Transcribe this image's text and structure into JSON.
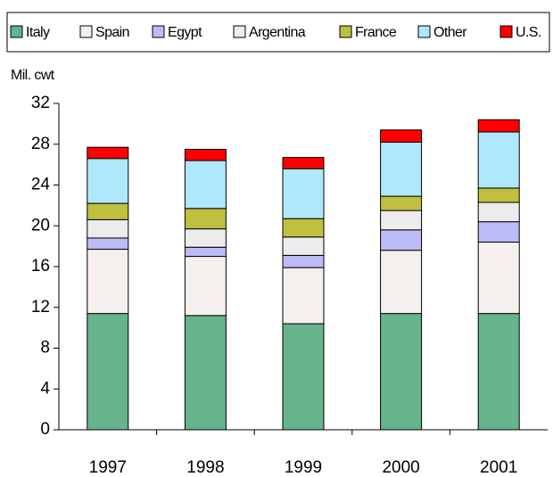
{
  "chart_data": {
    "type": "stacked_bar",
    "y_axis_label": "Mil. cwt",
    "categories": [
      "1997",
      "1998",
      "1999",
      "2000",
      "2001"
    ],
    "series": [
      {
        "name": "Italy",
        "color": "#66b38c",
        "values": [
          11.4,
          11.2,
          10.4,
          11.4,
          11.4
        ]
      },
      {
        "name": "Spain",
        "color": "#f5f0ee",
        "values": [
          6.3,
          5.8,
          5.5,
          6.2,
          7.0
        ]
      },
      {
        "name": "Egypt",
        "color": "#bbbbf5",
        "values": [
          1.1,
          0.9,
          1.2,
          2.0,
          2.0
        ]
      },
      {
        "name": "Argentina",
        "color": "#ececec",
        "values": [
          1.8,
          1.8,
          1.8,
          1.9,
          1.9
        ]
      },
      {
        "name": "France",
        "color": "#bfbf40",
        "values": [
          1.6,
          2.0,
          1.8,
          1.4,
          1.4
        ]
      },
      {
        "name": "Other",
        "color": "#aee8fa",
        "values": [
          4.4,
          4.7,
          4.9,
          5.3,
          5.5
        ]
      },
      {
        "name": "U.S.",
        "color": "#ff0000",
        "values": [
          1.1,
          1.1,
          1.1,
          1.2,
          1.2
        ]
      }
    ],
    "ylim": [
      0,
      32
    ],
    "yticks": [
      0,
      4,
      8,
      12,
      16,
      20,
      24,
      28,
      32
    ],
    "grid": false,
    "legend": "top"
  }
}
